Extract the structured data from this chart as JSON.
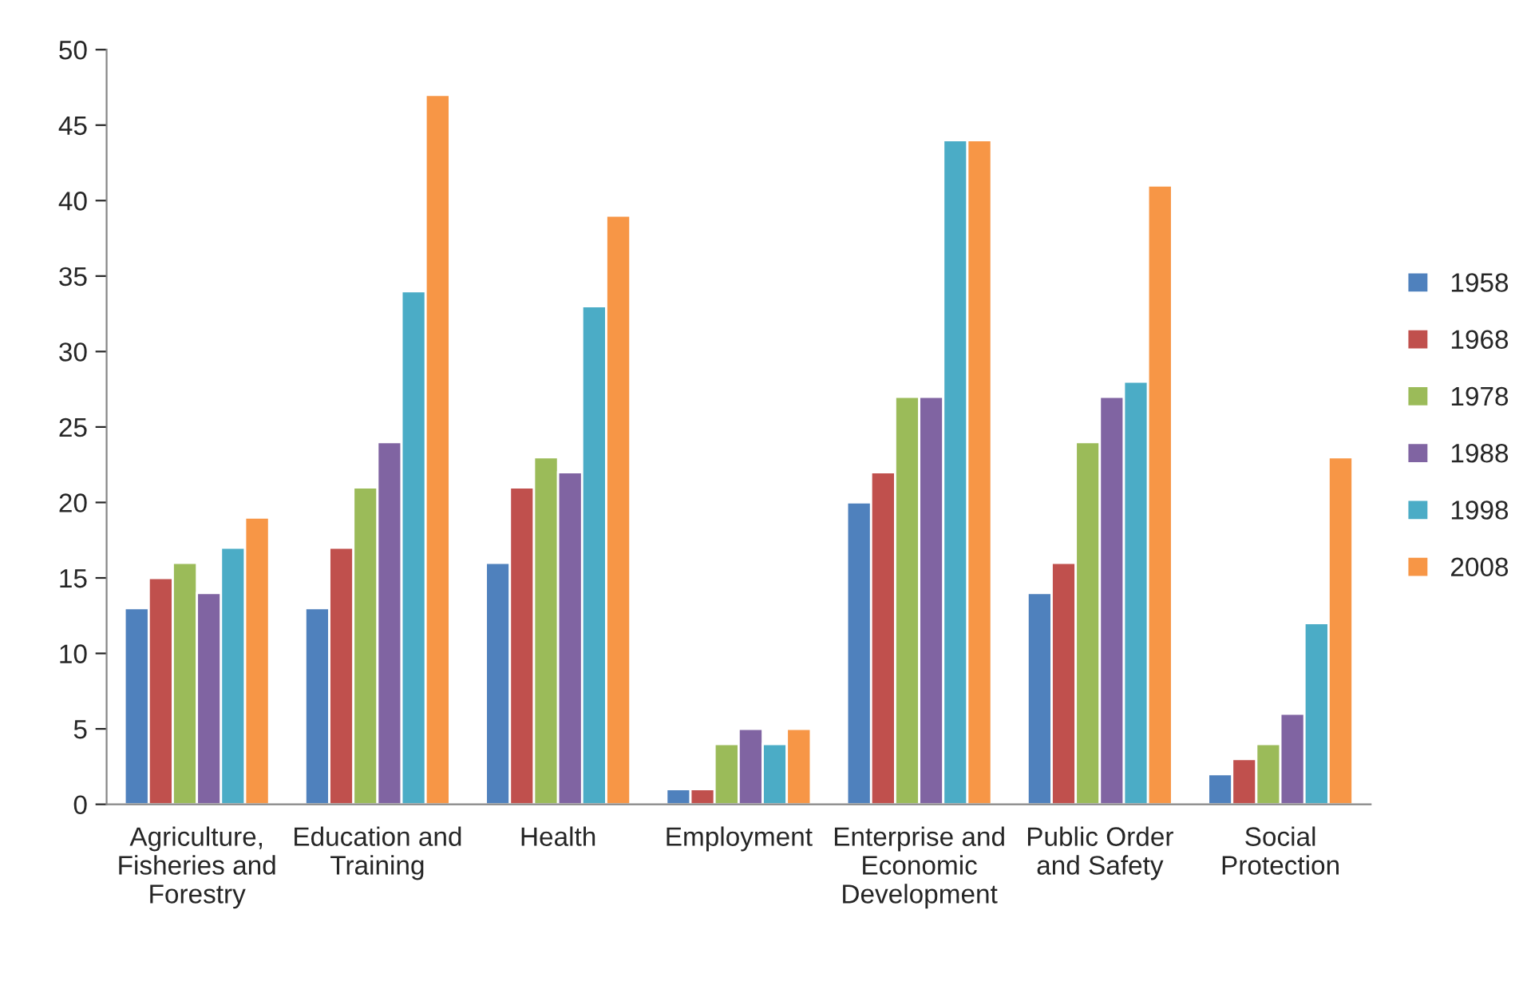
{
  "chart_data": {
    "type": "bar",
    "categories": [
      "Agriculture, Fisheries and Forestry",
      "Education and Training",
      "Health",
      "Employment",
      "Enterprise and Economic Development",
      "Public Order and Safety",
      "Social Protection"
    ],
    "series": [
      {
        "name": "1958",
        "color": "#4f81bd",
        "values": [
          13,
          13,
          16,
          1,
          20,
          14,
          2
        ]
      },
      {
        "name": "1968",
        "color": "#c0504d",
        "values": [
          15,
          17,
          21,
          1,
          22,
          16,
          3
        ]
      },
      {
        "name": "1978",
        "color": "#9bbb59",
        "values": [
          16,
          21,
          23,
          4,
          27,
          24,
          4
        ]
      },
      {
        "name": "1988",
        "color": "#8064a2",
        "values": [
          14,
          24,
          22,
          5,
          27,
          27,
          6
        ]
      },
      {
        "name": "1998",
        "color": "#4bacc6",
        "values": [
          17,
          34,
          33,
          4,
          44,
          28,
          12
        ]
      },
      {
        "name": "2008",
        "color": "#f79646",
        "values": [
          19,
          47,
          39,
          5,
          44,
          41,
          23
        ]
      }
    ],
    "ylim": [
      0,
      50
    ],
    "yticks": [
      0,
      5,
      10,
      15,
      20,
      25,
      30,
      35,
      40,
      45,
      50
    ],
    "grid": false,
    "legend": "right"
  }
}
